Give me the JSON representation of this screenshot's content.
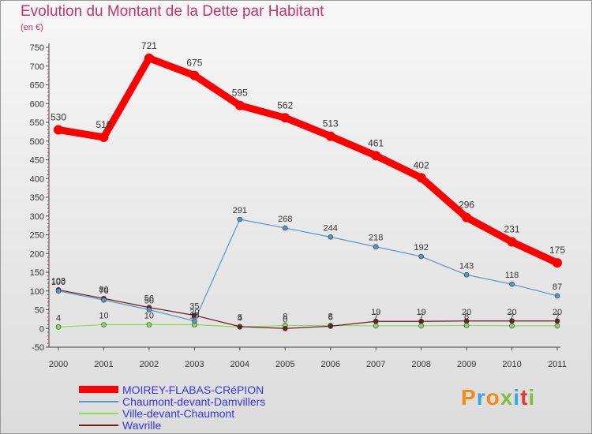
{
  "title": "Evolution du Montant de la Dette par Habitant",
  "unit": "(en €)",
  "logo": "Proxiti",
  "colors": {
    "title": "#c8336d",
    "axis_text": "#333333",
    "legend_text": "#3535e0"
  },
  "chart_data": {
    "type": "line",
    "x": [
      "2000",
      "2001",
      "2002",
      "2003",
      "2004",
      "2005",
      "2006",
      "2007",
      "2008",
      "2009",
      "2010",
      "2011"
    ],
    "ylim": [
      -50,
      750
    ],
    "yticks": [
      -50,
      0,
      50,
      100,
      150,
      200,
      250,
      300,
      350,
      400,
      450,
      500,
      550,
      600,
      650,
      700,
      750
    ],
    "grid": false,
    "legend": "bottom-left",
    "series": [
      {
        "name": "MOIREY-FLABAS-CRéPION",
        "color": "#ff0000",
        "width": 9,
        "marker": 6,
        "values": [
          530,
          510,
          721,
          675,
          595,
          562,
          513,
          461,
          402,
          296,
          231,
          175
        ],
        "labels": [
          "530",
          "510",
          "721",
          "675",
          "595",
          "562",
          "513",
          "461",
          "402",
          "296",
          "231",
          "175"
        ]
      },
      {
        "name": "Chaumont-devant-Damvillers",
        "color": "#5596cc",
        "width": 1.2,
        "marker": 3,
        "values": [
          100,
          76,
          50,
          20,
          291,
          268,
          244,
          218,
          192,
          143,
          118,
          87
        ],
        "labels": [
          "100",
          "76",
          "50",
          "20",
          "291",
          "268",
          "244",
          "218",
          "192",
          "143",
          "118",
          "87"
        ]
      },
      {
        "name": "Ville-devant-Chaumont",
        "color": "#88dd55",
        "width": 1.2,
        "marker": 3,
        "values": [
          4,
          10,
          10,
          10,
          4,
          8,
          8,
          7,
          7,
          8,
          7,
          7
        ],
        "labels": [
          "4",
          "10",
          "10",
          "10",
          "4",
          "8",
          "8",
          "7",
          "7",
          "8",
          "7",
          "7"
        ]
      },
      {
        "name": "Wavrille",
        "color": "#6e1e1e",
        "width": 1.2,
        "marker": 3,
        "values": [
          103,
          80,
          56,
          35,
          5,
          0,
          6,
          19,
          19,
          20,
          20,
          20
        ],
        "labels": [
          "103",
          "80",
          "56",
          "35",
          "5",
          "0",
          "6",
          "19",
          "19",
          "20",
          "20",
          "20"
        ]
      }
    ]
  }
}
